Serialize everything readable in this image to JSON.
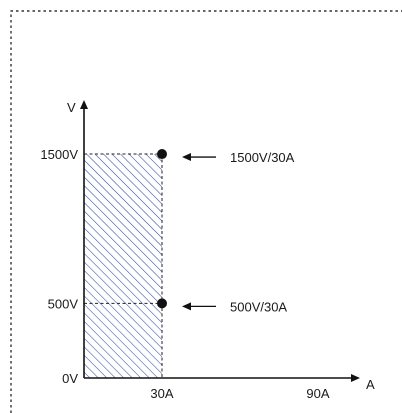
{
  "chart_data": {
    "type": "scatter",
    "title": "",
    "xlabel": "A",
    "ylabel": "V",
    "x_ticks": [
      {
        "value": 30,
        "label": "30A"
      },
      {
        "value": 90,
        "label": "90A"
      }
    ],
    "y_ticks": [
      {
        "value": 0,
        "label": "0V"
      },
      {
        "value": 500,
        "label": "500V"
      },
      {
        "value": 1500,
        "label": "1500V"
      }
    ],
    "points": [
      {
        "x": 30,
        "y": 1500,
        "label": "1500V/30A"
      },
      {
        "x": 30,
        "y": 500,
        "label": "500V/30A"
      }
    ],
    "shaded_region": {
      "x": [
        0,
        30
      ],
      "y": [
        0,
        1500
      ],
      "pattern": "diagonal-hatch",
      "color": "#2b4fa3"
    },
    "grid": false,
    "legend": "none"
  }
}
